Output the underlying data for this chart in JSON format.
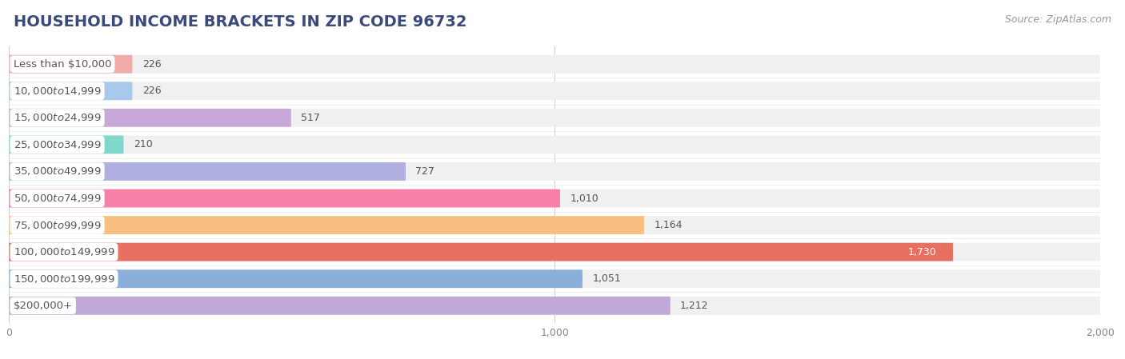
{
  "title": "HOUSEHOLD INCOME BRACKETS IN ZIP CODE 96732",
  "source": "Source: ZipAtlas.com",
  "categories": [
    "Less than $10,000",
    "$10,000 to $14,999",
    "$15,000 to $24,999",
    "$25,000 to $34,999",
    "$35,000 to $49,999",
    "$50,000 to $74,999",
    "$75,000 to $99,999",
    "$100,000 to $149,999",
    "$150,000 to $199,999",
    "$200,000+"
  ],
  "values": [
    226,
    226,
    517,
    210,
    727,
    1010,
    1164,
    1730,
    1051,
    1212
  ],
  "bar_colors": [
    "#f2aaaa",
    "#a8c8ec",
    "#c8a8d8",
    "#80d8cc",
    "#b0b0e0",
    "#f880a8",
    "#f8c080",
    "#e87060",
    "#88b0d8",
    "#c0a8d8"
  ],
  "xlim_min": 0,
  "xlim_max": 2000,
  "xticks": [
    0,
    1000,
    2000
  ],
  "bg_color": "#ffffff",
  "row_bg_color": "#f0f0f0",
  "title_color": "#3a4a7a",
  "source_color": "#999999",
  "label_text_color": "#555555",
  "value_text_color": "#555555",
  "value_text_color_on_bar": "#ffffff",
  "title_fontsize": 14,
  "source_fontsize": 9,
  "label_fontsize": 9.5,
  "value_fontsize": 9
}
